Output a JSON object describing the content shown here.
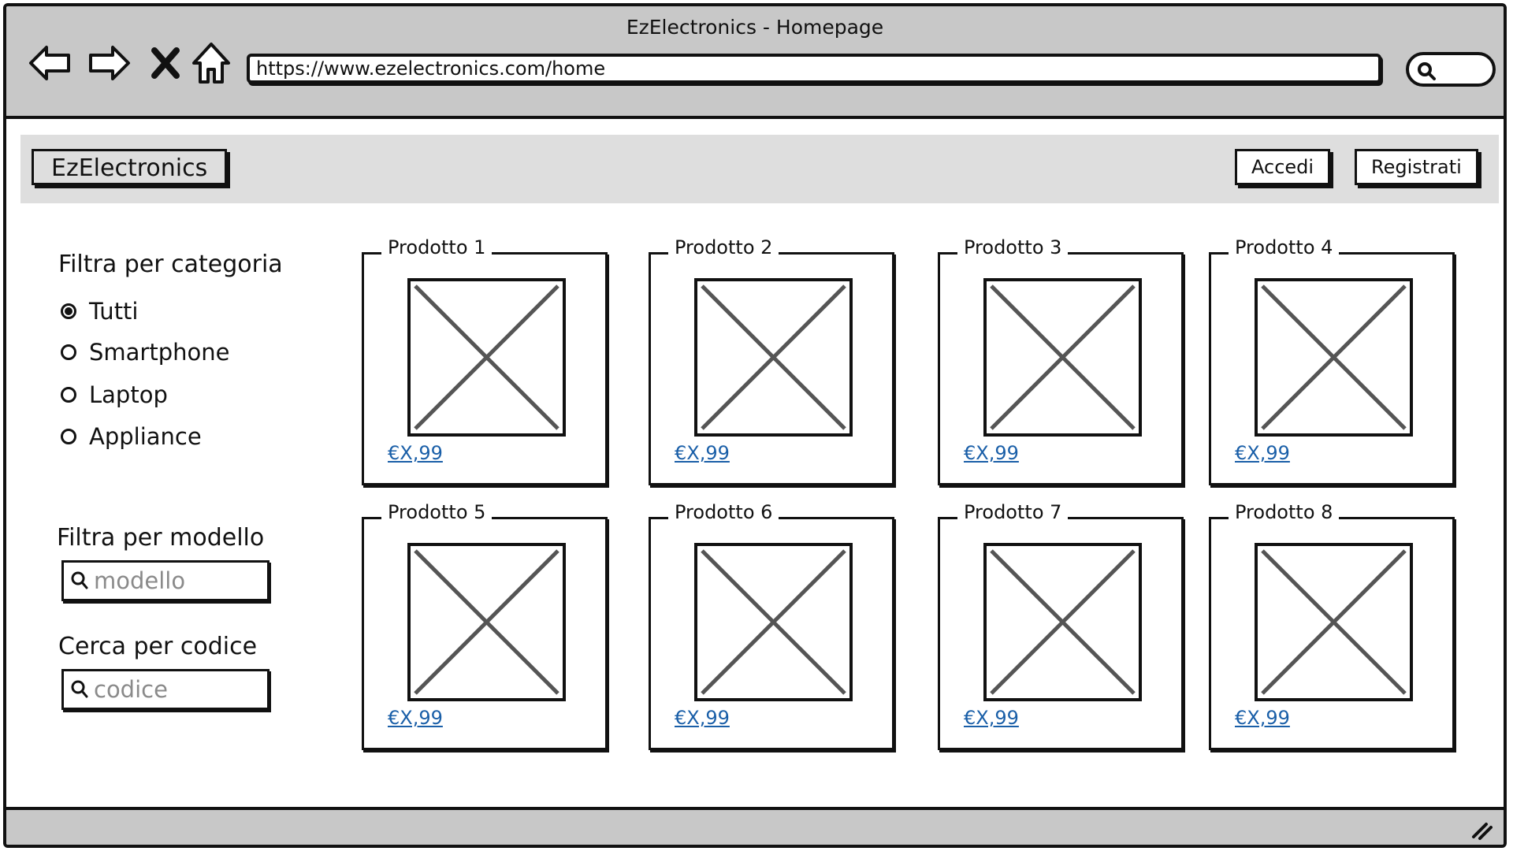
{
  "window": {
    "title": "EzElectronics - Homepage"
  },
  "browser": {
    "url": "https://www.ezelectronics.com/home",
    "nav_icons": [
      "back-arrow-icon",
      "forward-arrow-icon",
      "close-x-icon",
      "home-icon"
    ],
    "search_icon": "search-icon"
  },
  "header": {
    "brand": "EzElectronics",
    "login_label": "Accedi",
    "register_label": "Registrati"
  },
  "sidebar": {
    "category_title": "Filtra per categoria",
    "categories": [
      {
        "label": "Tutti",
        "selected": true
      },
      {
        "label": "Smartphone",
        "selected": false
      },
      {
        "label": "Laptop",
        "selected": false
      },
      {
        "label": "Appliance",
        "selected": false
      }
    ],
    "model_title": "Filtra per modello",
    "model_placeholder": "modello",
    "code_title": "Cerca per codice",
    "code_placeholder": "codice"
  },
  "products": [
    {
      "name": "Prodotto 1",
      "price": "€X,99"
    },
    {
      "name": "Prodotto 2",
      "price": "€X,99"
    },
    {
      "name": "Prodotto 3",
      "price": "€X,99"
    },
    {
      "name": "Prodotto 4",
      "price": "€X,99"
    },
    {
      "name": "Prodotto 5",
      "price": "€X,99"
    },
    {
      "name": "Prodotto 6",
      "price": "€X,99"
    },
    {
      "name": "Prodotto 7",
      "price": "€X,99"
    },
    {
      "name": "Prodotto 8",
      "price": "€X,99"
    }
  ],
  "colors": {
    "chrome": "#c8c8c8",
    "header": "#dedede",
    "link": "#1a5fa8",
    "ink": "#111111"
  }
}
